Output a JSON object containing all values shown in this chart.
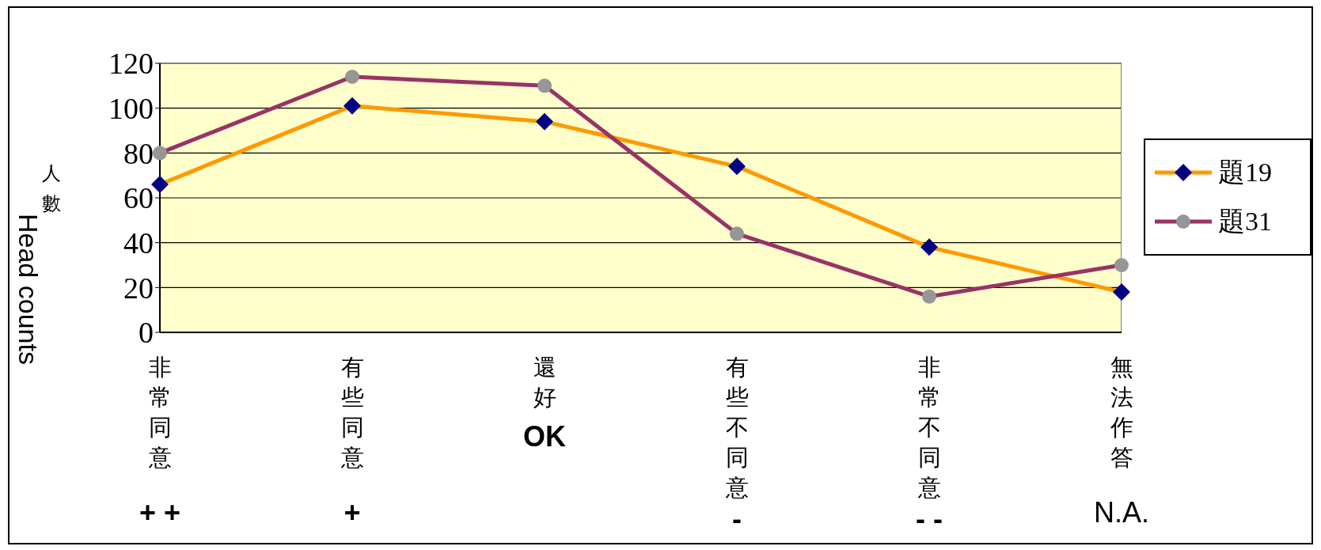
{
  "chart_data": {
    "type": "line",
    "ylabel": "人數\nHead counts",
    "categories": [
      "非常同意\n+ +",
      "有些同意\n+",
      "還好\nOK",
      "有些不同意\n-",
      "非常不同意\n- -",
      "無法作答\nN.A."
    ],
    "series": [
      {
        "name": "題19",
        "color": "#ff9900",
        "marker": "diamond",
        "colors": [
          "#000080",
          "#000080",
          "#000080",
          "#000080",
          "#000080",
          "#000080"
        ],
        "values": [
          66,
          101,
          94,
          74,
          38,
          18
        ]
      },
      {
        "name": "題31",
        "color": "#993366",
        "marker": "circle",
        "colors": [
          "#969696",
          "#969696",
          "#969696",
          "#969696",
          "#969696",
          "#969696"
        ],
        "values": [
          80,
          114,
          110,
          44,
          16,
          30
        ]
      }
    ],
    "ylim": [
      0,
      120
    ],
    "yticks": [
      0,
      20,
      40,
      60,
      80,
      100,
      120
    ],
    "grid": "y",
    "legend": "right",
    "line_style": "solid"
  }
}
